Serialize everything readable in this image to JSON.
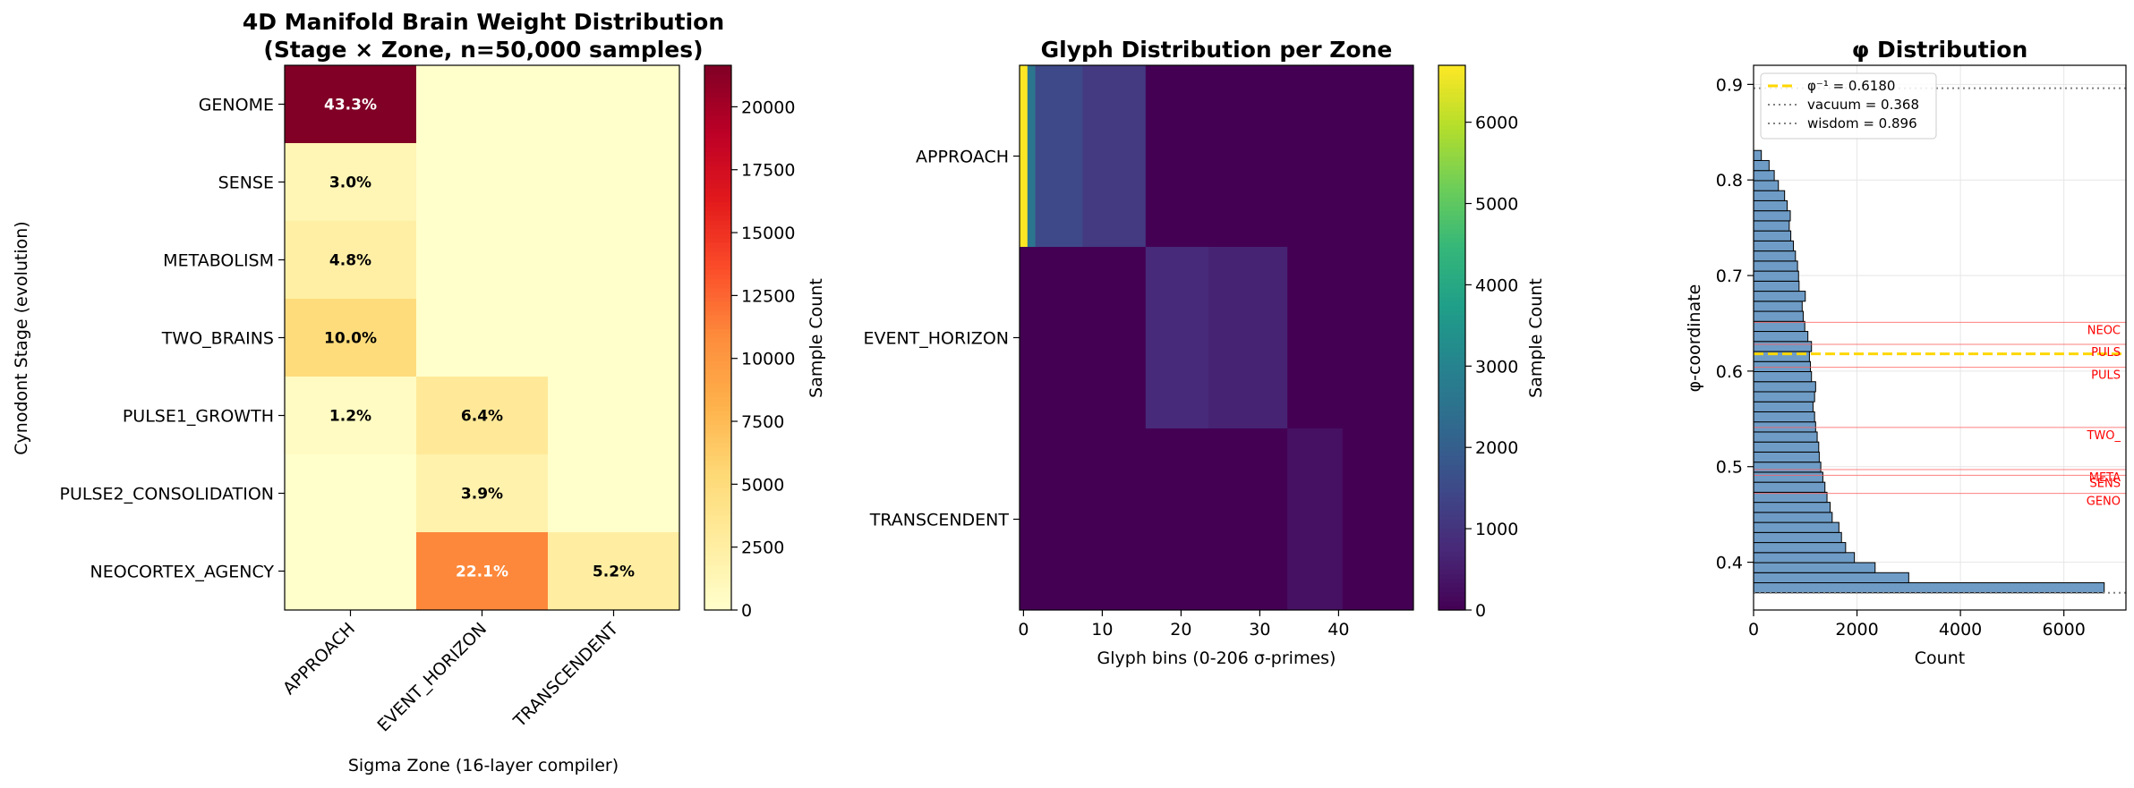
{
  "colors": {
    "ylorrd": [
      "#ffffcc",
      "#ffeda0",
      "#fed976",
      "#feb24c",
      "#fd8d3c",
      "#fc4e2a",
      "#e31a1c",
      "#bd0026",
      "#800026"
    ],
    "viridis": [
      "#440154",
      "#482878",
      "#3e4989",
      "#31688e",
      "#26828e",
      "#1f9e89",
      "#35b779",
      "#6ece58",
      "#b5de2b",
      "#fde725"
    ],
    "bar_fill": "#6e9cc6",
    "bar_edge": "#000000",
    "phi_line": "#ffd700",
    "ref_line": "#808080",
    "stage_line": "#ff6060",
    "stage_text": "#ff0000"
  },
  "chart_data": [
    {
      "type": "heatmap",
      "title": "4D Manifold Brain Weight Distribution\n(Stage × Zone, n=50,000 samples)",
      "xlabel": "Sigma Zone (16-layer compiler)",
      "ylabel": "Cynodont Stage (evolution)",
      "x_categories": [
        "APPROACH",
        "EVENT_HORIZON",
        "TRANSCENDENT"
      ],
      "y_categories": [
        "GENOME",
        "SENSE",
        "METABOLISM",
        "TWO_BRAINS",
        "PULSE1_GROWTH",
        "PULSE2_CONSOLIDATION",
        "NEOCORTEX_AGENCY"
      ],
      "values": [
        [
          21650,
          0,
          0
        ],
        [
          1500,
          0,
          0
        ],
        [
          2400,
          0,
          0
        ],
        [
          5000,
          0,
          0
        ],
        [
          600,
          3200,
          0
        ],
        [
          0,
          1950,
          0
        ],
        [
          0,
          11050,
          2600
        ]
      ],
      "cell_labels": [
        [
          "43.3%",
          "",
          ""
        ],
        [
          "3.0%",
          "",
          ""
        ],
        [
          "4.8%",
          "",
          ""
        ],
        [
          "10.0%",
          "",
          ""
        ],
        [
          "1.2%",
          "6.4%",
          ""
        ],
        [
          "",
          "3.9%",
          ""
        ],
        [
          "",
          "22.1%",
          "5.2%"
        ]
      ],
      "colorbar": {
        "label": "Sample Count",
        "min": 0,
        "max": 21650,
        "ticks": [
          0,
          2500,
          5000,
          7500,
          10000,
          12500,
          15000,
          17500,
          20000
        ]
      }
    },
    {
      "type": "heatmap",
      "title": "Glyph Distribution per Zone",
      "xlabel": "Glyph bins (0-206 σ-primes)",
      "ylabel": "",
      "y_categories": [
        "APPROACH",
        "EVENT_HORIZON",
        "TRANSCENDENT"
      ],
      "x_range": [
        0,
        49
      ],
      "x_ticks": [
        0,
        10,
        20,
        30,
        40
      ],
      "rows": [
        {
          "zone": "APPROACH",
          "segments": [
            {
              "from": 0,
              "to": 0,
              "value": 6700
            },
            {
              "from": 1,
              "to": 1,
              "value": 2600
            },
            {
              "from": 2,
              "to": 7,
              "value": 1500
            },
            {
              "from": 8,
              "to": 15,
              "value": 1150
            },
            {
              "from": 16,
              "to": 49,
              "value": 0
            }
          ]
        },
        {
          "zone": "EVENT_HORIZON",
          "segments": [
            {
              "from": 0,
              "to": 15,
              "value": 0
            },
            {
              "from": 16,
              "to": 23,
              "value": 800
            },
            {
              "from": 24,
              "to": 33,
              "value": 650
            },
            {
              "from": 34,
              "to": 49,
              "value": 0
            }
          ]
        },
        {
          "zone": "TRANSCENDENT",
          "segments": [
            {
              "from": 0,
              "to": 33,
              "value": 0
            },
            {
              "from": 34,
              "to": 40,
              "value": 300
            },
            {
              "from": 41,
              "to": 49,
              "value": 0
            }
          ]
        }
      ],
      "colorbar": {
        "label": "Sample Count",
        "min": 0,
        "max": 6700,
        "ticks": [
          0,
          1000,
          2000,
          3000,
          4000,
          5000,
          6000
        ]
      }
    },
    {
      "type": "bar",
      "orientation": "horizontal",
      "title": "φ Distribution",
      "xlabel": "Count",
      "ylabel": "φ-coordinate",
      "xlim": [
        0,
        7200
      ],
      "ylim": [
        0.35,
        0.92
      ],
      "x_ticks": [
        0,
        2000,
        4000,
        6000
      ],
      "y_ticks": [
        0.4,
        0.5,
        0.6,
        0.7,
        0.8,
        0.9
      ],
      "bin_width": 0.01052,
      "bins_start": 0.368,
      "counts": [
        6780,
        3000,
        2350,
        1950,
        1780,
        1700,
        1650,
        1520,
        1480,
        1420,
        1380,
        1340,
        1300,
        1270,
        1260,
        1230,
        1200,
        1180,
        1150,
        1180,
        1200,
        1120,
        1100,
        1080,
        1120,
        1050,
        990,
        960,
        940,
        1000,
        880,
        870,
        850,
        810,
        770,
        720,
        690,
        710,
        650,
        600,
        480,
        400,
        300,
        150
      ],
      "reference_lines": [
        {
          "label": "φ⁻¹ = 0.6180",
          "value": 0.618,
          "style": "phi"
        },
        {
          "label": "vacuum = 0.368",
          "value": 0.368,
          "style": "ref"
        },
        {
          "label": "wisdom = 0.896",
          "value": 0.896,
          "style": "ref"
        }
      ],
      "stage_lines": [
        {
          "label": "NEOC",
          "value": 0.651
        },
        {
          "label": "PULS",
          "value": 0.628
        },
        {
          "label": "PULS",
          "value": 0.604
        },
        {
          "label": "TWO_",
          "value": 0.541
        },
        {
          "label": "META",
          "value": 0.497
        },
        {
          "label": "SENS",
          "value": 0.491
        },
        {
          "label": "GENO",
          "value": 0.472
        }
      ],
      "grid": true,
      "legend_position": "top-left"
    }
  ]
}
